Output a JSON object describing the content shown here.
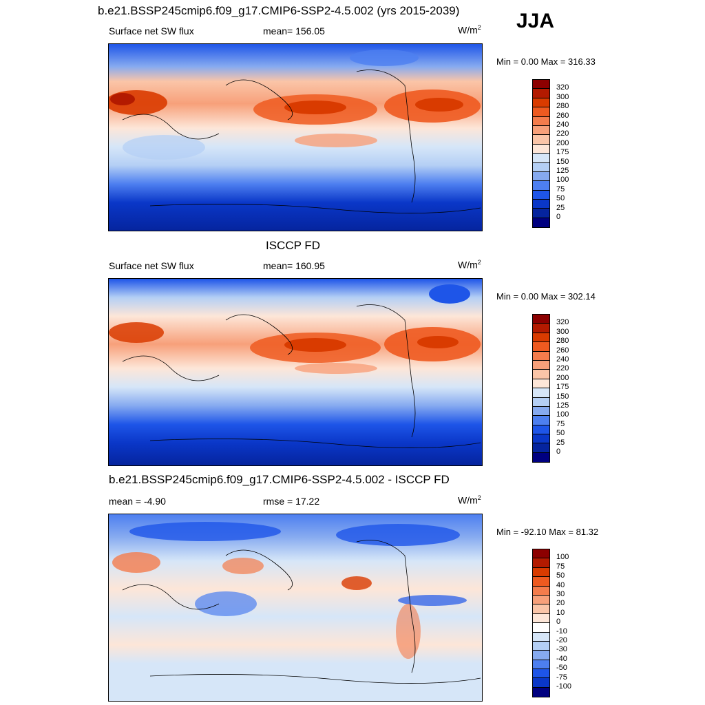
{
  "season": "JJA",
  "panels": [
    {
      "title": "b.e21.BSSP245cmip6.f09_g17.CMIP6-SSP2-4.5.002 (yrs 2015-2039)",
      "left_label": "Surface net SW flux",
      "center_label": "mean= 156.05",
      "units": "W/m",
      "units_sup": "2",
      "minmax": "Min =   0.00 Max = 316.33",
      "colorbar_labels": [
        "320",
        "300",
        "280",
        "260",
        "240",
        "220",
        "200",
        "175",
        "150",
        "125",
        "100",
        "75",
        "50",
        "25",
        "0"
      ],
      "colors": [
        "#8c0000",
        "#b31a00",
        "#d93b00",
        "#ee5a20",
        "#f47c4c",
        "#f7a07a",
        "#fac5a8",
        "#fde6d8",
        "#d6e6f8",
        "#b4cff5",
        "#86aaf0",
        "#4d7ff0",
        "#1e55e8",
        "#0a37c8",
        "#05249e",
        "#000080"
      ]
    },
    {
      "title": "ISCCP FD",
      "left_label": "Surface net SW flux",
      "center_label": "mean= 160.95",
      "units": "W/m",
      "units_sup": "2",
      "minmax": "Min =   0.00 Max = 302.14",
      "colorbar_labels": [
        "320",
        "300",
        "280",
        "260",
        "240",
        "220",
        "200",
        "175",
        "150",
        "125",
        "100",
        "75",
        "50",
        "25",
        "0"
      ],
      "colors": [
        "#8c0000",
        "#b31a00",
        "#d93b00",
        "#ee5a20",
        "#f47c4c",
        "#f7a07a",
        "#fac5a8",
        "#fde6d8",
        "#d6e6f8",
        "#b4cff5",
        "#86aaf0",
        "#4d7ff0",
        "#1e55e8",
        "#0a37c8",
        "#05249e",
        "#000080"
      ]
    },
    {
      "title": "b.e21.BSSP245cmip6.f09_g17.CMIP6-SSP2-4.5.002 - ISCCP FD",
      "left_label": "mean =  -4.90",
      "center_label": "rmse =  17.22",
      "units": "W/m",
      "units_sup": "2",
      "minmax": "Min = -92.10 Max =  81.32",
      "colorbar_labels": [
        "100",
        "75",
        "50",
        "40",
        "30",
        "20",
        "10",
        "0",
        "-10",
        "-20",
        "-30",
        "-40",
        "-50",
        "-75",
        "-100"
      ],
      "colors": [
        "#8c0000",
        "#b31a00",
        "#d93b00",
        "#ee5a20",
        "#f47c4c",
        "#f7a07a",
        "#fac5a8",
        "#fde6d8",
        "#ffffff",
        "#d6e6f8",
        "#b4cff5",
        "#86aaf0",
        "#4d7ff0",
        "#1e55e8",
        "#0a37c8",
        "#000080"
      ]
    }
  ]
}
